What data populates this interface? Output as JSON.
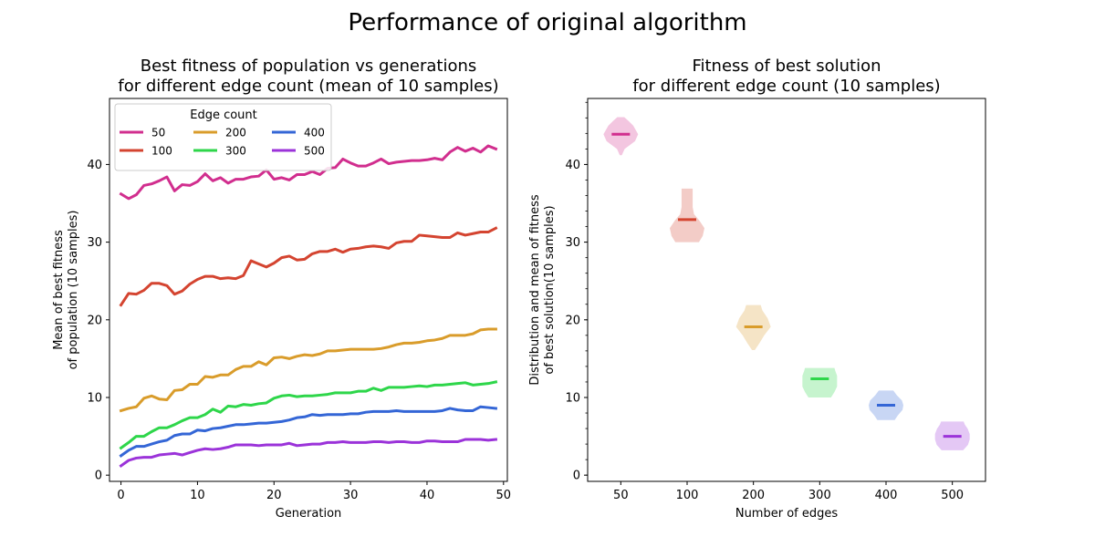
{
  "suptitle": "Performance of original algorithm",
  "chart_data": [
    {
      "type": "line",
      "title_line1": "Best fitness of population vs generations",
      "title_line2": "for different edge count (mean of 10 samples)",
      "xlabel": "Generation",
      "ylabel_line1": "Mean of best fitness",
      "ylabel_line2": "of population (10 samples)",
      "xlim": [
        -1.5,
        50.5
      ],
      "ylim": [
        -0.8,
        48.5
      ],
      "xticks": [
        0,
        10,
        20,
        30,
        40,
        50
      ],
      "yticks": [
        0,
        10,
        20,
        30,
        40
      ],
      "grid": false,
      "legend": {
        "title": "Edge count",
        "placement": "upper-left",
        "ncol": 3
      },
      "series": [
        {
          "name": "50",
          "color": "#d12e8e",
          "values": [
            36.2,
            35.6,
            36.1,
            37.3,
            37.5,
            37.9,
            38.4,
            36.6,
            37.4,
            37.3,
            37.8,
            38.8,
            37.9,
            38.3,
            37.6,
            38.1,
            38.1,
            38.4,
            38.5,
            39.3,
            38.1,
            38.3,
            38.0,
            38.7,
            38.7,
            39.1,
            38.7,
            39.5,
            39.6,
            40.7,
            40.2,
            39.8,
            39.8,
            40.2,
            40.7,
            40.1,
            40.3,
            40.4,
            40.5,
            40.5,
            40.6,
            40.8,
            40.6,
            41.6,
            42.2,
            41.7,
            42.1,
            41.6,
            42.4,
            42.0
          ]
        },
        {
          "name": "100",
          "color": "#d44430",
          "values": [
            21.9,
            23.4,
            23.3,
            23.8,
            24.7,
            24.7,
            24.4,
            23.3,
            23.7,
            24.6,
            25.2,
            25.6,
            25.6,
            25.3,
            25.4,
            25.3,
            25.7,
            27.6,
            27.2,
            26.8,
            27.3,
            28.0,
            28.2,
            27.7,
            27.8,
            28.5,
            28.8,
            28.8,
            29.1,
            28.7,
            29.1,
            29.2,
            29.4,
            29.5,
            29.4,
            29.2,
            29.9,
            30.1,
            30.1,
            30.9,
            30.8,
            30.7,
            30.6,
            30.6,
            31.2,
            30.9,
            31.1,
            31.3,
            31.3,
            31.8
          ]
        },
        {
          "name": "200",
          "color": "#d99c2b",
          "values": [
            8.3,
            8.6,
            8.8,
            9.9,
            10.2,
            9.8,
            9.7,
            10.9,
            11.0,
            11.7,
            11.7,
            12.7,
            12.6,
            12.9,
            12.9,
            13.6,
            14.0,
            14.0,
            14.6,
            14.2,
            15.1,
            15.2,
            15.0,
            15.3,
            15.5,
            15.4,
            15.6,
            16.0,
            16.0,
            16.1,
            16.2,
            16.2,
            16.2,
            16.2,
            16.3,
            16.5,
            16.8,
            17.0,
            17.0,
            17.1,
            17.3,
            17.4,
            17.6,
            18.0,
            18.0,
            18.0,
            18.2,
            18.7,
            18.8,
            18.8
          ]
        },
        {
          "name": "300",
          "color": "#2ed64a",
          "values": [
            3.5,
            4.2,
            5.0,
            5.0,
            5.6,
            6.1,
            6.1,
            6.5,
            7.0,
            7.4,
            7.4,
            7.8,
            8.5,
            8.1,
            8.9,
            8.8,
            9.1,
            9.0,
            9.2,
            9.3,
            9.9,
            10.2,
            10.3,
            10.1,
            10.2,
            10.2,
            10.3,
            10.4,
            10.6,
            10.6,
            10.6,
            10.8,
            10.8,
            11.2,
            10.9,
            11.3,
            11.3,
            11.3,
            11.4,
            11.5,
            11.4,
            11.6,
            11.6,
            11.7,
            11.8,
            11.9,
            11.6,
            11.7,
            11.8,
            12.0
          ]
        },
        {
          "name": "400",
          "color": "#3466d6",
          "values": [
            2.5,
            3.2,
            3.7,
            3.7,
            4.0,
            4.3,
            4.5,
            5.1,
            5.3,
            5.3,
            5.8,
            5.7,
            6.0,
            6.1,
            6.3,
            6.5,
            6.5,
            6.6,
            6.7,
            6.7,
            6.8,
            6.9,
            7.1,
            7.4,
            7.5,
            7.8,
            7.7,
            7.8,
            7.8,
            7.8,
            7.9,
            7.9,
            8.1,
            8.2,
            8.2,
            8.2,
            8.3,
            8.2,
            8.2,
            8.2,
            8.2,
            8.2,
            8.3,
            8.6,
            8.4,
            8.3,
            8.3,
            8.8,
            8.7,
            8.6
          ]
        },
        {
          "name": "500",
          "color": "#9b33d9",
          "values": [
            1.2,
            1.9,
            2.2,
            2.3,
            2.3,
            2.6,
            2.7,
            2.8,
            2.6,
            2.9,
            3.2,
            3.4,
            3.3,
            3.4,
            3.6,
            3.9,
            3.9,
            3.9,
            3.8,
            3.9,
            3.9,
            3.9,
            4.1,
            3.8,
            3.9,
            4.0,
            4.0,
            4.2,
            4.2,
            4.3,
            4.2,
            4.2,
            4.2,
            4.3,
            4.3,
            4.2,
            4.3,
            4.3,
            4.2,
            4.2,
            4.4,
            4.4,
            4.3,
            4.3,
            4.3,
            4.6,
            4.6,
            4.6,
            4.5,
            4.6
          ]
        }
      ]
    },
    {
      "type": "violin",
      "title_line1": "Fitness of best solution",
      "title_line2": "for different edge count (10 samples)",
      "xlabel": "Number of edges",
      "ylabel_line1": "Distribution and mean of fitness",
      "ylabel_line2": "of best solution(10 samples)",
      "categories": [
        "50",
        "100",
        "200",
        "300",
        "400",
        "500"
      ],
      "xlim": [
        -0.5,
        5.5
      ],
      "ylim": [
        -0.8,
        48.5
      ],
      "yticks": [
        0,
        10,
        20,
        30,
        40
      ],
      "grid": false,
      "violins": [
        {
          "name": "50",
          "color": "#d12e8e",
          "mean": 43.9,
          "min": 41.2,
          "max": 46.1,
          "profile": [
            [
              41.2,
              0.06
            ],
            [
              42.0,
              0.22
            ],
            [
              43.0,
              0.82
            ],
            [
              43.9,
              1.0
            ],
            [
              45.0,
              0.72
            ],
            [
              45.6,
              0.45
            ],
            [
              46.1,
              0.2
            ]
          ]
        },
        {
          "name": "100",
          "color": "#d44430",
          "mean": 32.9,
          "min": 30.0,
          "max": 36.9,
          "profile": [
            [
              30.0,
              0.68
            ],
            [
              30.8,
              0.9
            ],
            [
              31.8,
              1.0
            ],
            [
              32.8,
              0.7
            ],
            [
              33.6,
              0.4
            ],
            [
              34.5,
              0.32
            ],
            [
              35.5,
              0.32
            ],
            [
              36.9,
              0.32
            ]
          ]
        },
        {
          "name": "200",
          "color": "#d99c2b",
          "mean": 19.1,
          "min": 16.1,
          "max": 21.9,
          "profile": [
            [
              16.1,
              0.08
            ],
            [
              17.0,
              0.35
            ],
            [
              18.0,
              0.62
            ],
            [
              19.1,
              1.0
            ],
            [
              20.2,
              0.82
            ],
            [
              21.2,
              0.52
            ],
            [
              21.9,
              0.42
            ]
          ]
        },
        {
          "name": "300",
          "color": "#2ed64a",
          "mean": 12.4,
          "min": 10.0,
          "max": 13.8,
          "profile": [
            [
              10.0,
              0.65
            ],
            [
              10.7,
              0.85
            ],
            [
              11.4,
              1.0
            ],
            [
              12.1,
              1.0
            ],
            [
              12.8,
              1.0
            ],
            [
              13.4,
              0.9
            ],
            [
              13.8,
              0.85
            ]
          ]
        },
        {
          "name": "400",
          "color": "#3466d6",
          "mean": 9.0,
          "min": 7.1,
          "max": 10.9,
          "profile": [
            [
              7.1,
              0.5
            ],
            [
              7.7,
              0.68
            ],
            [
              8.4,
              0.95
            ],
            [
              9.0,
              1.0
            ],
            [
              9.6,
              0.92
            ],
            [
              10.3,
              0.62
            ],
            [
              10.9,
              0.42
            ]
          ]
        },
        {
          "name": "500",
          "color": "#9b33d9",
          "mean": 5.0,
          "min": 3.2,
          "max": 6.9,
          "profile": [
            [
              3.2,
              0.62
            ],
            [
              3.9,
              0.9
            ],
            [
              4.6,
              1.0
            ],
            [
              5.3,
              1.0
            ],
            [
              6.0,
              0.88
            ],
            [
              6.5,
              0.72
            ],
            [
              6.9,
              0.65
            ]
          ]
        }
      ]
    }
  ]
}
